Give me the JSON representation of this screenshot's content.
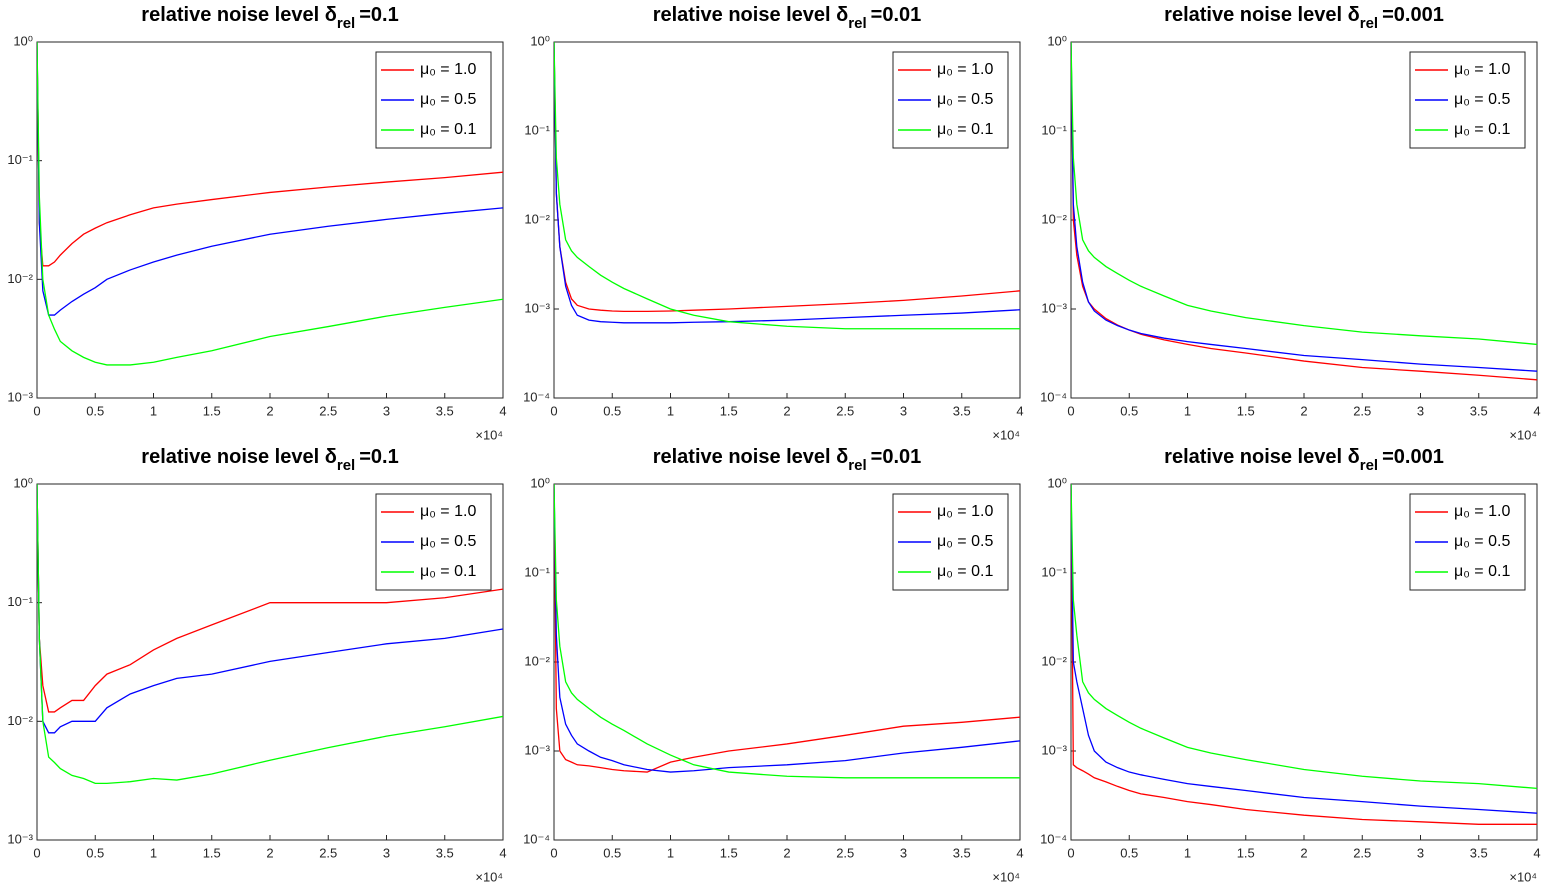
{
  "chart_data": [
    {
      "type": "line",
      "title": "relative noise level δ",
      "title_subscript": "rel",
      "title_suffix": "=0.1",
      "yscale": "log",
      "grid": false,
      "legend": "upper right",
      "x": [
        0,
        200,
        500,
        1000,
        1500,
        2000,
        3000,
        4000,
        5000,
        6000,
        8000,
        10000,
        12000,
        15000,
        20000,
        25000,
        30000,
        35000,
        40000
      ],
      "xlim": [
        0,
        40000
      ],
      "xticks": [
        0,
        {
          "value": 5000,
          "label": "0.5"
        },
        {
          "value": 10000,
          "label": "1"
        },
        {
          "value": 15000,
          "label": "1.5"
        },
        {
          "value": 20000,
          "label": "2"
        },
        {
          "value": 25000,
          "label": "2.5"
        },
        {
          "value": 30000,
          "label": "3"
        },
        {
          "value": 35000,
          "label": "3.5"
        },
        {
          "value": 40000,
          "label": "4"
        }
      ],
      "x_exponent_label": "×10⁴",
      "ylim": [
        0.001,
        1
      ],
      "yticks": [
        {
          "value": 0.001,
          "label": "10⁻³"
        },
        {
          "value": 0.01,
          "label": "10⁻²"
        },
        {
          "value": 0.1,
          "label": "10⁻¹"
        },
        {
          "value": 1,
          "label": "10⁰"
        }
      ],
      "series": [
        {
          "name": "μ₀ = 1.0",
          "color": "#ff0000",
          "values": [
            1,
            0.03,
            0.013,
            0.013,
            0.014,
            0.016,
            0.02,
            0.024,
            0.027,
            0.03,
            0.035,
            0.04,
            0.043,
            0.047,
            0.054,
            0.06,
            0.066,
            0.072,
            0.08
          ]
        },
        {
          "name": "μ₀ = 0.5",
          "color": "#0000ff",
          "values": [
            1,
            0.03,
            0.008,
            0.005,
            0.005,
            0.0055,
            0.0065,
            0.0075,
            0.0085,
            0.01,
            0.012,
            0.014,
            0.016,
            0.019,
            0.024,
            0.028,
            0.032,
            0.036,
            0.04
          ]
        },
        {
          "name": "μ₀ = 0.1",
          "color": "#00ff00",
          "values": [
            1,
            0.05,
            0.01,
            0.005,
            0.0038,
            0.003,
            0.0025,
            0.0022,
            0.002,
            0.0019,
            0.0019,
            0.002,
            0.0022,
            0.0025,
            0.0033,
            0.004,
            0.0049,
            0.0058,
            0.0068
          ]
        }
      ]
    },
    {
      "type": "line",
      "title": "relative noise level δ",
      "title_subscript": "rel",
      "title_suffix": "=0.01",
      "yscale": "log",
      "grid": false,
      "legend": "upper right",
      "x": [
        0,
        200,
        500,
        1000,
        1500,
        2000,
        3000,
        4000,
        5000,
        6000,
        8000,
        10000,
        12000,
        15000,
        20000,
        25000,
        30000,
        35000,
        40000
      ],
      "xlim": [
        0,
        40000
      ],
      "xticks": [
        0,
        {
          "value": 5000,
          "label": "0.5"
        },
        {
          "value": 10000,
          "label": "1"
        },
        {
          "value": 15000,
          "label": "1.5"
        },
        {
          "value": 20000,
          "label": "2"
        },
        {
          "value": 25000,
          "label": "2.5"
        },
        {
          "value": 30000,
          "label": "3"
        },
        {
          "value": 35000,
          "label": "3.5"
        },
        {
          "value": 40000,
          "label": "4"
        }
      ],
      "x_exponent_label": "×10⁴",
      "ylim": [
        0.0001,
        1
      ],
      "yticks": [
        {
          "value": 0.0001,
          "label": "10⁻⁴"
        },
        {
          "value": 0.001,
          "label": "10⁻³"
        },
        {
          "value": 0.01,
          "label": "10⁻²"
        },
        {
          "value": 0.1,
          "label": "10⁻¹"
        },
        {
          "value": 1,
          "label": "10⁰"
        }
      ],
      "series": [
        {
          "name": "μ₀ = 1.0",
          "color": "#ff0000",
          "values": [
            1,
            0.02,
            0.005,
            0.002,
            0.0013,
            0.0011,
            0.001,
            0.00097,
            0.00095,
            0.00094,
            0.00094,
            0.00095,
            0.00097,
            0.001,
            0.00107,
            0.00115,
            0.00125,
            0.0014,
            0.0016
          ]
        },
        {
          "name": "μ₀ = 0.5",
          "color": "#0000ff",
          "values": [
            1,
            0.02,
            0.005,
            0.0018,
            0.0011,
            0.00085,
            0.00075,
            0.00072,
            0.00071,
            0.0007,
            0.0007,
            0.0007,
            0.00071,
            0.00072,
            0.00075,
            0.0008,
            0.00085,
            0.0009,
            0.00098
          ]
        },
        {
          "name": "μ₀ = 0.1",
          "color": "#00ff00",
          "values": [
            1,
            0.05,
            0.015,
            0.006,
            0.0045,
            0.0038,
            0.003,
            0.0024,
            0.002,
            0.0017,
            0.0013,
            0.001,
            0.00085,
            0.00072,
            0.00064,
            0.0006,
            0.0006,
            0.0006,
            0.0006
          ]
        }
      ]
    },
    {
      "type": "line",
      "title": "relative noise level δ",
      "title_subscript": "rel",
      "title_suffix": "=0.001",
      "yscale": "log",
      "grid": false,
      "legend": "upper right",
      "x": [
        0,
        200,
        500,
        1000,
        1500,
        2000,
        3000,
        4000,
        5000,
        6000,
        8000,
        10000,
        12000,
        15000,
        20000,
        25000,
        30000,
        35000,
        40000
      ],
      "xlim": [
        0,
        40000
      ],
      "xticks": [
        0,
        {
          "value": 5000,
          "label": "0.5"
        },
        {
          "value": 10000,
          "label": "1"
        },
        {
          "value": 15000,
          "label": "1.5"
        },
        {
          "value": 20000,
          "label": "2"
        },
        {
          "value": 25000,
          "label": "2.5"
        },
        {
          "value": 30000,
          "label": "3"
        },
        {
          "value": 35000,
          "label": "3.5"
        },
        {
          "value": 40000,
          "label": "4"
        }
      ],
      "x_exponent_label": "×10⁴",
      "ylim": [
        0.0001,
        1
      ],
      "yticks": [
        {
          "value": 0.0001,
          "label": "10⁻⁴"
        },
        {
          "value": 0.001,
          "label": "10⁻³"
        },
        {
          "value": 0.01,
          "label": "10⁻²"
        },
        {
          "value": 0.1,
          "label": "10⁻¹"
        },
        {
          "value": 1,
          "label": "10⁰"
        }
      ],
      "series": [
        {
          "name": "μ₀ = 1.0",
          "color": "#ff0000",
          "values": [
            1,
            0.01,
            0.004,
            0.0018,
            0.0012,
            0.001,
            0.00078,
            0.00066,
            0.00058,
            0.00052,
            0.00045,
            0.0004,
            0.00036,
            0.00032,
            0.00026,
            0.00022,
            0.0002,
            0.00018,
            0.00016
          ]
        },
        {
          "name": "μ₀ = 0.5",
          "color": "#0000ff",
          "values": [
            1,
            0.015,
            0.005,
            0.002,
            0.0012,
            0.00095,
            0.00075,
            0.00065,
            0.00058,
            0.00053,
            0.00047,
            0.00043,
            0.0004,
            0.00036,
            0.0003,
            0.00027,
            0.00024,
            0.00022,
            0.0002
          ]
        },
        {
          "name": "μ₀ = 0.1",
          "color": "#00ff00",
          "values": [
            1,
            0.05,
            0.015,
            0.006,
            0.0045,
            0.0038,
            0.003,
            0.0025,
            0.0021,
            0.0018,
            0.0014,
            0.0011,
            0.00095,
            0.0008,
            0.00065,
            0.00055,
            0.0005,
            0.00046,
            0.0004
          ]
        }
      ]
    },
    {
      "type": "line",
      "title": "relative noise level δ",
      "title_subscript": "rel",
      "title_suffix": "=0.1",
      "yscale": "log",
      "grid": false,
      "legend": "upper right",
      "x": [
        0,
        200,
        500,
        1000,
        1500,
        2000,
        3000,
        4000,
        5000,
        6000,
        8000,
        10000,
        12000,
        15000,
        20000,
        25000,
        30000,
        35000,
        40000
      ],
      "xlim": [
        0,
        40000
      ],
      "xticks": [
        0,
        {
          "value": 5000,
          "label": "0.5"
        },
        {
          "value": 10000,
          "label": "1"
        },
        {
          "value": 15000,
          "label": "1.5"
        },
        {
          "value": 20000,
          "label": "2"
        },
        {
          "value": 25000,
          "label": "2.5"
        },
        {
          "value": 30000,
          "label": "3"
        },
        {
          "value": 35000,
          "label": "3.5"
        },
        {
          "value": 40000,
          "label": "4"
        }
      ],
      "x_exponent_label": "×10⁴",
      "ylim": [
        0.001,
        1
      ],
      "yticks": [
        {
          "value": 0.001,
          "label": "10⁻³"
        },
        {
          "value": 0.01,
          "label": "10⁻²"
        },
        {
          "value": 0.1,
          "label": "10⁻¹"
        },
        {
          "value": 1,
          "label": "10⁰"
        }
      ],
      "series": [
        {
          "name": "μ₀ = 1.0",
          "color": "#ff0000",
          "values": [
            1,
            0.05,
            0.02,
            0.012,
            0.012,
            0.013,
            0.015,
            0.015,
            0.02,
            0.025,
            0.03,
            0.04,
            0.05,
            0.065,
            0.1,
            0.1,
            0.1,
            0.11,
            0.13
          ]
        },
        {
          "name": "μ₀ = 0.5",
          "color": "#0000ff",
          "values": [
            1,
            0.05,
            0.01,
            0.008,
            0.008,
            0.009,
            0.01,
            0.01,
            0.01,
            0.013,
            0.017,
            0.02,
            0.023,
            0.025,
            0.032,
            0.038,
            0.045,
            0.05,
            0.06
          ]
        },
        {
          "name": "μ₀ = 0.1",
          "color": "#00ff00",
          "values": [
            1,
            0.05,
            0.01,
            0.005,
            0.0045,
            0.004,
            0.0035,
            0.0033,
            0.003,
            0.003,
            0.0031,
            0.0033,
            0.0032,
            0.0036,
            0.0047,
            0.006,
            0.0075,
            0.009,
            0.011
          ]
        }
      ]
    },
    {
      "type": "line",
      "title": "relative noise level δ",
      "title_subscript": "rel",
      "title_suffix": "=0.01",
      "yscale": "log",
      "grid": false,
      "legend": "upper right",
      "x": [
        0,
        200,
        500,
        1000,
        1500,
        2000,
        3000,
        4000,
        5000,
        6000,
        8000,
        10000,
        12000,
        15000,
        20000,
        25000,
        30000,
        35000,
        40000
      ],
      "xlim": [
        0,
        40000
      ],
      "xticks": [
        0,
        {
          "value": 5000,
          "label": "0.5"
        },
        {
          "value": 10000,
          "label": "1"
        },
        {
          "value": 15000,
          "label": "1.5"
        },
        {
          "value": 20000,
          "label": "2"
        },
        {
          "value": 25000,
          "label": "2.5"
        },
        {
          "value": 30000,
          "label": "3"
        },
        {
          "value": 35000,
          "label": "3.5"
        },
        {
          "value": 40000,
          "label": "4"
        }
      ],
      "x_exponent_label": "×10⁴",
      "ylim": [
        0.0001,
        1
      ],
      "yticks": [
        {
          "value": 0.0001,
          "label": "10⁻⁴"
        },
        {
          "value": 0.001,
          "label": "10⁻³"
        },
        {
          "value": 0.01,
          "label": "10⁻²"
        },
        {
          "value": 0.1,
          "label": "10⁻¹"
        },
        {
          "value": 1,
          "label": "10⁰"
        }
      ],
      "series": [
        {
          "name": "μ₀ = 1.0",
          "color": "#ff0000",
          "values": [
            1,
            0.003,
            0.001,
            0.0008,
            0.00075,
            0.0007,
            0.00068,
            0.00065,
            0.00062,
            0.0006,
            0.00058,
            0.00075,
            0.00085,
            0.001,
            0.0012,
            0.0015,
            0.0019,
            0.0021,
            0.0024
          ]
        },
        {
          "name": "μ₀ = 0.5",
          "color": "#0000ff",
          "values": [
            1,
            0.02,
            0.004,
            0.002,
            0.0015,
            0.0012,
            0.001,
            0.00085,
            0.00078,
            0.0007,
            0.00062,
            0.00058,
            0.0006,
            0.00065,
            0.0007,
            0.00078,
            0.00095,
            0.0011,
            0.0013
          ]
        },
        {
          "name": "μ₀ = 0.1",
          "color": "#00ff00",
          "values": [
            1,
            0.05,
            0.015,
            0.006,
            0.0045,
            0.0038,
            0.003,
            0.0024,
            0.002,
            0.0017,
            0.0012,
            0.0009,
            0.0007,
            0.00058,
            0.00052,
            0.0005,
            0.0005,
            0.0005,
            0.0005
          ]
        }
      ]
    },
    {
      "type": "line",
      "title": "relative noise level δ",
      "title_subscript": "rel",
      "title_suffix": "=0.001",
      "yscale": "log",
      "grid": false,
      "legend": "upper right",
      "x": [
        0,
        200,
        500,
        1000,
        1500,
        2000,
        3000,
        4000,
        5000,
        6000,
        8000,
        10000,
        12000,
        15000,
        20000,
        25000,
        30000,
        35000,
        40000
      ],
      "xlim": [
        0,
        40000
      ],
      "xticks": [
        0,
        {
          "value": 5000,
          "label": "0.5"
        },
        {
          "value": 10000,
          "label": "1"
        },
        {
          "value": 15000,
          "label": "1.5"
        },
        {
          "value": 20000,
          "label": "2"
        },
        {
          "value": 25000,
          "label": "2.5"
        },
        {
          "value": 30000,
          "label": "3"
        },
        {
          "value": 35000,
          "label": "3.5"
        },
        {
          "value": 40000,
          "label": "4"
        }
      ],
      "x_exponent_label": "×10⁴",
      "ylim": [
        0.0001,
        1
      ],
      "yticks": [
        {
          "value": 0.0001,
          "label": "10⁻⁴"
        },
        {
          "value": 0.001,
          "label": "10⁻³"
        },
        {
          "value": 0.01,
          "label": "10⁻²"
        },
        {
          "value": 0.1,
          "label": "10⁻¹"
        },
        {
          "value": 1,
          "label": "10⁰"
        }
      ],
      "series": [
        {
          "name": "μ₀ = 1.0",
          "color": "#ff0000",
          "values": [
            1,
            0.0007,
            0.00065,
            0.0006,
            0.00055,
            0.0005,
            0.00045,
            0.0004,
            0.00036,
            0.00033,
            0.0003,
            0.00027,
            0.00025,
            0.00022,
            0.00019,
            0.00017,
            0.00016,
            0.00015,
            0.00015
          ]
        },
        {
          "name": "μ₀ = 0.5",
          "color": "#0000ff",
          "values": [
            1,
            0.01,
            0.006,
            0.003,
            0.0015,
            0.001,
            0.00075,
            0.00065,
            0.00058,
            0.00054,
            0.00048,
            0.00043,
            0.0004,
            0.00036,
            0.0003,
            0.00027,
            0.00024,
            0.00022,
            0.0002
          ]
        },
        {
          "name": "μ₀ = 0.1",
          "color": "#00ff00",
          "values": [
            1,
            0.05,
            0.02,
            0.006,
            0.0045,
            0.0038,
            0.003,
            0.0025,
            0.0021,
            0.0018,
            0.0014,
            0.0011,
            0.00095,
            0.0008,
            0.00062,
            0.00052,
            0.00046,
            0.00043,
            0.00038
          ]
        }
      ]
    }
  ]
}
